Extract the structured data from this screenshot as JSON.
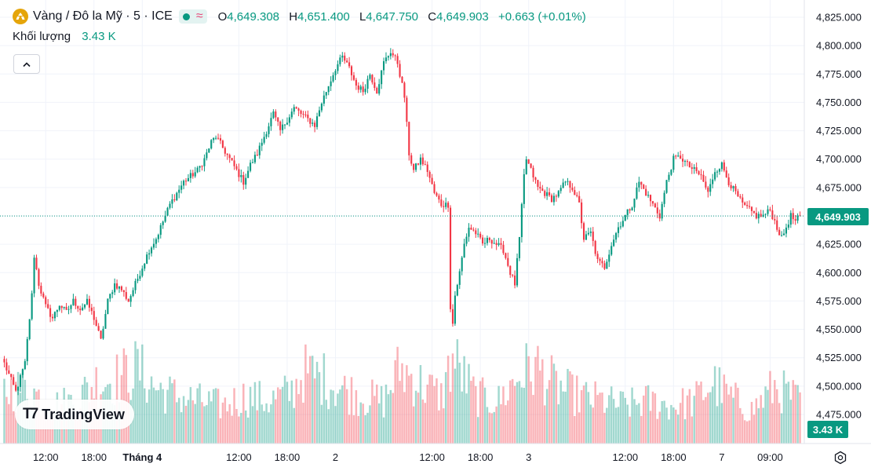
{
  "symbol": {
    "title": "Vàng / Đô la Mỹ · 5 · ICE",
    "logo_icon": "gold-coin-icon"
  },
  "ohlc": {
    "open_label": "O",
    "open": "4,649.308",
    "high_label": "H",
    "high": "4,651.400",
    "low_label": "L",
    "low": "4,647.750",
    "close_label": "C",
    "close": "4,649.903",
    "change": "+0.663 (+0.01%)"
  },
  "volume": {
    "label": "Khối lượng",
    "value": "3.43 K"
  },
  "branding": {
    "name": "TradingView"
  },
  "badges": {
    "last_price": "4,649.903",
    "last_volume": "3.43 K"
  },
  "colors": {
    "up": "#089981",
    "down": "#f23645",
    "grid": "#f0f3fa",
    "axis_text": "#131722"
  },
  "chart_data": {
    "type": "candlestick",
    "title": "Vàng / Đô la Mỹ · 5 · ICE",
    "y_axis": {
      "min": 4450,
      "max": 4830,
      "ticks": [
        "4,825.000",
        "4,800.000",
        "4,775.000",
        "4,750.000",
        "4,725.000",
        "4,700.000",
        "4,675.000",
        "4,650.000",
        "4,625.000",
        "4,600.000",
        "4,575.000",
        "4,550.000",
        "4,525.000",
        "4,500.000",
        "4,475.000"
      ],
      "tick_values": [
        4825,
        4800,
        4775,
        4750,
        4725,
        4700,
        4675,
        4650,
        4625,
        4600,
        4575,
        4550,
        4525,
        4500,
        4475
      ]
    },
    "x_axis": {
      "labels": [
        "12:00",
        "18:00",
        "Tháng 4",
        "12:00",
        "18:00",
        "2",
        "12:00",
        "18:00",
        "3",
        "12:00",
        "18:00",
        "7",
        "09:00"
      ],
      "label_index": [
        18,
        39,
        60,
        102,
        123,
        144,
        186,
        207,
        228,
        270,
        291,
        312,
        333
      ]
    },
    "last_price": 4649.903,
    "last_volume": "3.43 K",
    "price_path": [
      [
        0,
        4520
      ],
      [
        3,
        4505
      ],
      [
        5,
        4495
      ],
      [
        9,
        4520
      ],
      [
        12,
        4580
      ],
      [
        13,
        4615
      ],
      [
        15,
        4590
      ],
      [
        18,
        4570
      ],
      [
        21,
        4560
      ],
      [
        24,
        4572
      ],
      [
        27,
        4565
      ],
      [
        30,
        4575
      ],
      [
        33,
        4568
      ],
      [
        36,
        4574
      ],
      [
        39,
        4560
      ],
      [
        42,
        4540
      ],
      [
        45,
        4575
      ],
      [
        48,
        4590
      ],
      [
        51,
        4585
      ],
      [
        54,
        4575
      ],
      [
        57,
        4590
      ],
      [
        60,
        4605
      ],
      [
        63,
        4620
      ],
      [
        66,
        4630
      ],
      [
        69,
        4645
      ],
      [
        72,
        4660
      ],
      [
        75,
        4670
      ],
      [
        78,
        4680
      ],
      [
        81,
        4685
      ],
      [
        84,
        4690
      ],
      [
        87,
        4700
      ],
      [
        90,
        4715
      ],
      [
        92,
        4720
      ],
      [
        95,
        4710
      ],
      [
        98,
        4700
      ],
      [
        101,
        4690
      ],
      [
        104,
        4680
      ],
      [
        107,
        4695
      ],
      [
        110,
        4705
      ],
      [
        113,
        4720
      ],
      [
        115,
        4730
      ],
      [
        117,
        4740
      ],
      [
        120,
        4725
      ],
      [
        123,
        4735
      ],
      [
        126,
        4745
      ],
      [
        129,
        4740
      ],
      [
        132,
        4735
      ],
      [
        135,
        4730
      ],
      [
        138,
        4750
      ],
      [
        141,
        4765
      ],
      [
        144,
        4780
      ],
      [
        147,
        4790
      ],
      [
        150,
        4780
      ],
      [
        153,
        4765
      ],
      [
        156,
        4760
      ],
      [
        159,
        4775
      ],
      [
        162,
        4760
      ],
      [
        165,
        4785
      ],
      [
        168,
        4795
      ],
      [
        171,
        4785
      ],
      [
        174,
        4755
      ],
      [
        176,
        4705
      ],
      [
        178,
        4690
      ],
      [
        181,
        4700
      ],
      [
        184,
        4690
      ],
      [
        187,
        4670
      ],
      [
        190,
        4660
      ],
      [
        193,
        4660
      ],
      [
        194,
        4570
      ],
      [
        195,
        4555
      ],
      [
        196,
        4580
      ],
      [
        198,
        4600
      ],
      [
        200,
        4625
      ],
      [
        202,
        4640
      ],
      [
        205,
        4635
      ],
      [
        208,
        4625
      ],
      [
        211,
        4630
      ],
      [
        214,
        4625
      ],
      [
        217,
        4620
      ],
      [
        220,
        4600
      ],
      [
        222,
        4590
      ],
      [
        224,
        4630
      ],
      [
        226,
        4685
      ],
      [
        227,
        4700
      ],
      [
        229,
        4690
      ],
      [
        232,
        4675
      ],
      [
        235,
        4670
      ],
      [
        238,
        4665
      ],
      [
        241,
        4670
      ],
      [
        244,
        4680
      ],
      [
        247,
        4675
      ],
      [
        250,
        4660
      ],
      [
        252,
        4630
      ],
      [
        255,
        4635
      ],
      [
        258,
        4610
      ],
      [
        261,
        4605
      ],
      [
        264,
        4625
      ],
      [
        267,
        4640
      ],
      [
        270,
        4650
      ],
      [
        273,
        4660
      ],
      [
        276,
        4680
      ],
      [
        279,
        4670
      ],
      [
        282,
        4660
      ],
      [
        285,
        4650
      ],
      [
        288,
        4680
      ],
      [
        291,
        4700
      ],
      [
        294,
        4702
      ],
      [
        297,
        4695
      ],
      [
        300,
        4690
      ],
      [
        303,
        4685
      ],
      [
        306,
        4670
      ],
      [
        309,
        4690
      ],
      [
        312,
        4695
      ],
      [
        315,
        4680
      ],
      [
        318,
        4670
      ],
      [
        321,
        4660
      ],
      [
        324,
        4655
      ],
      [
        327,
        4650
      ],
      [
        330,
        4650
      ],
      [
        333,
        4655
      ],
      [
        336,
        4640
      ],
      [
        338,
        4630
      ],
      [
        340,
        4640
      ],
      [
        342,
        4650
      ],
      [
        344,
        4645
      ],
      [
        346,
        4650
      ]
    ],
    "volume_profile": [
      [
        0,
        1.1
      ],
      [
        10,
        1.2
      ],
      [
        20,
        0.8
      ],
      [
        30,
        0.9
      ],
      [
        40,
        1.3
      ],
      [
        50,
        1.4
      ],
      [
        58,
        1.6
      ],
      [
        65,
        1.2
      ],
      [
        75,
        1.0
      ],
      [
        85,
        0.9
      ],
      [
        95,
        0.8
      ],
      [
        105,
        1.0
      ],
      [
        115,
        0.9
      ],
      [
        125,
        1.1
      ],
      [
        130,
        1.5
      ],
      [
        138,
        1.4
      ],
      [
        145,
        1.2
      ],
      [
        155,
        1.0
      ],
      [
        165,
        0.9
      ],
      [
        172,
        1.6
      ],
      [
        180,
        1.3
      ],
      [
        190,
        1.0
      ],
      [
        195,
        1.8
      ],
      [
        205,
        1.0
      ],
      [
        215,
        0.9
      ],
      [
        225,
        1.5
      ],
      [
        232,
        1.6
      ],
      [
        240,
        1.2
      ],
      [
        250,
        1.0
      ],
      [
        260,
        0.9
      ],
      [
        270,
        0.8
      ],
      [
        280,
        0.9
      ],
      [
        290,
        0.8
      ],
      [
        300,
        0.9
      ],
      [
        308,
        1.3
      ],
      [
        315,
        1.0
      ],
      [
        325,
        0.7
      ],
      [
        335,
        1.2
      ],
      [
        346,
        0.9
      ]
    ]
  }
}
